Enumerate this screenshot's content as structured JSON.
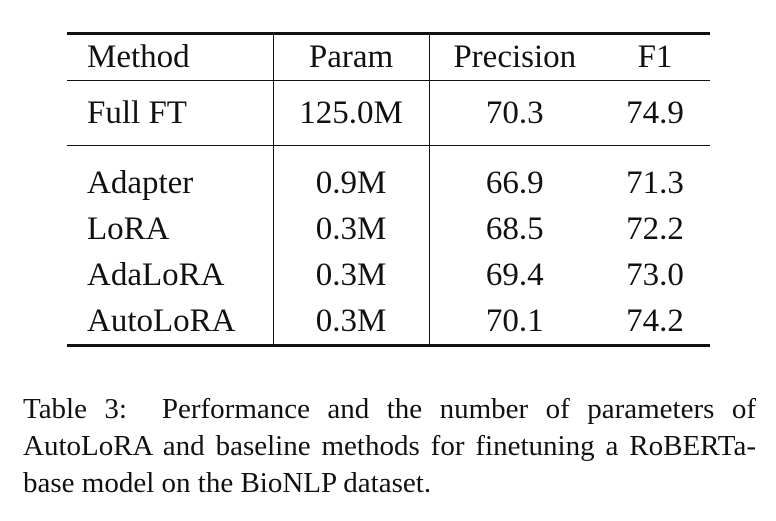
{
  "table": {
    "columns": [
      "Method",
      "Param",
      "Precision",
      "F1"
    ],
    "baseline_row": {
      "method": "Full FT",
      "param": "125.0M",
      "precision": "70.3",
      "f1": "74.9"
    },
    "rows": [
      {
        "method": "Adapter",
        "param": "0.9M",
        "precision": "66.9",
        "f1": "71.3"
      },
      {
        "method": "LoRA",
        "param": "0.3M",
        "precision": "68.5",
        "f1": "72.2"
      },
      {
        "method": "AdaLoRA",
        "param": "0.3M",
        "precision": "69.4",
        "f1": "73.0"
      },
      {
        "method": "AutoLoRA",
        "param": "0.3M",
        "precision": "70.1",
        "f1": "74.2"
      }
    ],
    "bold_cells": [
      "AutoLoRA.precision",
      "AutoLoRA.f1"
    ]
  },
  "caption": {
    "label": "Table 3:",
    "text": "Performance and the number of parameters of AutoLoRA and baseline methods for finetuning a RoBERTa-base model on the BioNLP dataset."
  }
}
